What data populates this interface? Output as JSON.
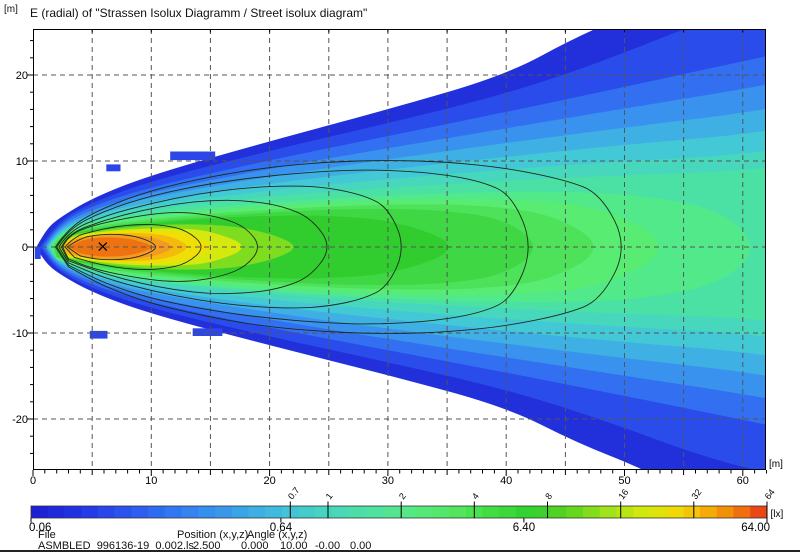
{
  "title": "E (radial) of \"Strassen Isolux Diagramm / Street isolux diagram\"",
  "axes": {
    "y_unit": "[m]",
    "x_unit": "[m]",
    "x_tick_labels": [
      "0",
      "10",
      "20",
      "30",
      "40",
      "50",
      "60"
    ],
    "x_tick_values": [
      0,
      10,
      20,
      30,
      40,
      50,
      60
    ],
    "y_tick_labels": [
      "20",
      "10",
      "0",
      "-10",
      "-20"
    ],
    "y_tick_values": [
      20,
      10,
      0,
      -10,
      -20
    ],
    "x_range_m": [
      0,
      62
    ],
    "y_range_m": [
      -25.9,
      25.3
    ],
    "grid_x_step_m": 5,
    "grid_y_step_m": 10
  },
  "colorbar": {
    "unit": "[lx]",
    "min": 0.06,
    "max": 64,
    "labels_below": [
      "0.06",
      "0.64",
      "6.40",
      "64.00"
    ],
    "values_below": [
      0.06,
      0.64,
      6.4,
      64
    ],
    "labels_above": [
      "0.7",
      "1",
      "2",
      "4",
      "8",
      "16",
      "32",
      "64"
    ],
    "levels_above": [
      0.7,
      1,
      2,
      4,
      8,
      16,
      32,
      64
    ],
    "palette_stops": [
      [
        0.0,
        "#1a1ed0"
      ],
      [
        0.07,
        "#2336e6"
      ],
      [
        0.14,
        "#2c5af0"
      ],
      [
        0.21,
        "#3380f2"
      ],
      [
        0.28,
        "#3aa2ea"
      ],
      [
        0.34,
        "#40bfdc"
      ],
      [
        0.4,
        "#46d5bf"
      ],
      [
        0.46,
        "#4ee0a1"
      ],
      [
        0.52,
        "#56e982"
      ],
      [
        0.575,
        "#52e75f"
      ],
      [
        0.63,
        "#40dc40"
      ],
      [
        0.68,
        "#2fd02b"
      ],
      [
        0.73,
        "#5ad41f"
      ],
      [
        0.78,
        "#9ce317"
      ],
      [
        0.83,
        "#cfe80e"
      ],
      [
        0.87,
        "#ecdf08"
      ],
      [
        0.9,
        "#f4c307"
      ],
      [
        0.93,
        "#f5a007"
      ],
      [
        0.96,
        "#f3790b"
      ],
      [
        1.0,
        "#e8321a"
      ]
    ]
  },
  "chart_data": {
    "type": "isolux_contour_map",
    "title": "E (radial) of \"Strassen Isolux Diagramm / Street isolux diagram\"",
    "units": {
      "xy": "m",
      "illuminance": "lx"
    },
    "scale_type": "logarithmic",
    "scale_range_lx": [
      0.06,
      64
    ],
    "contour_levels_lx": [
      0.7,
      1,
      2,
      4,
      8,
      16,
      32
    ],
    "source_marker_m": {
      "x": 5.9,
      "y": 0.05
    },
    "field_bands": [
      {
        "color": "#2130db",
        "open": true,
        "pts": [
          [
            0.3,
            0
          ],
          [
            1,
            1.8
          ],
          [
            2,
            3.2
          ],
          [
            5,
            5.7
          ],
          [
            10,
            8.4
          ],
          [
            20,
            12.3
          ],
          [
            30,
            16
          ],
          [
            40,
            20
          ],
          [
            46,
            24.5
          ],
          [
            52,
            28
          ],
          [
            58,
            33
          ]
        ]
      },
      {
        "color": "#2a4cea",
        "open": true,
        "pts": [
          [
            0.6,
            0
          ],
          [
            2,
            2.9
          ],
          [
            5,
            5.2
          ],
          [
            10,
            7.7
          ],
          [
            20,
            11.2
          ],
          [
            30,
            14.4
          ],
          [
            40,
            17.8
          ],
          [
            48,
            21.5
          ],
          [
            58,
            27
          ]
        ]
      },
      {
        "color": "#3270f1",
        "open": true,
        "pts": [
          [
            0.8,
            0
          ],
          [
            2,
            2.6
          ],
          [
            5,
            4.8
          ],
          [
            10,
            7.0
          ],
          [
            20,
            10.1
          ],
          [
            30,
            12.9
          ],
          [
            40,
            15.7
          ],
          [
            50,
            18.6
          ],
          [
            62,
            22.2
          ]
        ]
      },
      {
        "color": "#3992ee",
        "open": true,
        "pts": [
          [
            1.0,
            0
          ],
          [
            2,
            2.35
          ],
          [
            5,
            4.4
          ],
          [
            10,
            6.4
          ],
          [
            20,
            9.1
          ],
          [
            30,
            11.5
          ],
          [
            40,
            13.8
          ],
          [
            50,
            16.1
          ],
          [
            62,
            18.8
          ]
        ]
      },
      {
        "color": "#3eb0e4",
        "open": true,
        "pts": [
          [
            1.1,
            0
          ],
          [
            2,
            2.1
          ],
          [
            5,
            4.05
          ],
          [
            10,
            5.8
          ],
          [
            20,
            8.2
          ],
          [
            30,
            10.2
          ],
          [
            40,
            12.1
          ],
          [
            50,
            13.9
          ],
          [
            62,
            15.9
          ]
        ]
      },
      {
        "color": "#43c8d6",
        "open": true,
        "pts": [
          [
            1.2,
            0
          ],
          [
            2,
            1.9
          ],
          [
            5,
            3.7
          ],
          [
            10,
            5.3
          ],
          [
            20,
            7.4
          ],
          [
            30,
            9.0
          ],
          [
            40,
            10.5
          ],
          [
            50,
            11.9
          ],
          [
            62,
            13.3
          ]
        ]
      },
      {
        "color": "#47d7bd",
        "open": true,
        "pts": [
          [
            1.3,
            0
          ],
          [
            2,
            1.7
          ],
          [
            5,
            3.4
          ],
          [
            10,
            4.8
          ],
          [
            20,
            6.6
          ],
          [
            30,
            7.9
          ],
          [
            40,
            9.0
          ],
          [
            50,
            10.0
          ],
          [
            62,
            10.9
          ]
        ]
      },
      {
        "color": "#4ce1a4",
        "open": true,
        "pts": [
          [
            1.4,
            0
          ],
          [
            2,
            1.55
          ],
          [
            5,
            3.1
          ],
          [
            10,
            4.35
          ],
          [
            20,
            5.9
          ],
          [
            30,
            6.9
          ],
          [
            40,
            7.7
          ],
          [
            50,
            8.35
          ],
          [
            62,
            8.9
          ]
        ]
      },
      {
        "color": "#52e98b",
        "pts": [
          [
            1.5,
            0
          ],
          [
            2,
            1.45
          ],
          [
            5,
            2.85
          ],
          [
            10,
            3.95
          ],
          [
            20,
            5.2
          ],
          [
            30,
            6.0
          ],
          [
            40,
            6.45
          ],
          [
            50,
            6.3
          ],
          [
            58,
            4.5
          ],
          [
            61.5,
            0
          ]
        ]
      },
      {
        "color": "#58ec73",
        "pts": [
          [
            1.6,
            0
          ],
          [
            2,
            1.35
          ],
          [
            5,
            2.6
          ],
          [
            10,
            3.6
          ],
          [
            20,
            4.8
          ],
          [
            30,
            5.5
          ],
          [
            40,
            5.6
          ],
          [
            48,
            4.8
          ],
          [
            54.5,
            0
          ]
        ]
      },
      {
        "color": "#4ee25a",
        "pts": [
          [
            1.7,
            0
          ],
          [
            2,
            1.25
          ],
          [
            5,
            2.4
          ],
          [
            10,
            3.3
          ],
          [
            20,
            4.4
          ],
          [
            30,
            5.0
          ],
          [
            38,
            4.9
          ],
          [
            44,
            3.8
          ],
          [
            48.5,
            0
          ]
        ]
      },
      {
        "color": "#3fd844",
        "pts": [
          [
            1.8,
            0
          ],
          [
            2,
            1.15
          ],
          [
            5,
            2.2
          ],
          [
            10,
            3.05
          ],
          [
            20,
            4.05
          ],
          [
            28,
            4.5
          ],
          [
            35,
            4.3
          ],
          [
            40,
            3.2
          ],
          [
            43,
            0
          ]
        ]
      },
      {
        "color": "#31cd2f",
        "pts": [
          [
            1.9,
            0
          ],
          [
            3,
            1.5
          ],
          [
            5,
            2.0
          ],
          [
            10,
            2.8
          ],
          [
            18,
            3.6
          ],
          [
            25,
            3.7
          ],
          [
            31,
            3.0
          ],
          [
            36.5,
            0
          ]
        ]
      },
      {
        "color": "#7edd1f",
        "pts": [
          [
            2.1,
            0
          ],
          [
            3,
            1.35
          ],
          [
            5,
            1.85
          ],
          [
            9,
            2.45
          ],
          [
            13,
            2.7
          ],
          [
            17,
            2.45
          ],
          [
            20.5,
            1.4
          ],
          [
            22.5,
            0
          ]
        ]
      },
      {
        "color": "#d6e90e",
        "pts": [
          [
            2.3,
            0
          ],
          [
            3,
            1.2
          ],
          [
            5,
            1.65
          ],
          [
            8,
            2.1
          ],
          [
            12,
            2.2
          ],
          [
            15,
            1.9
          ],
          [
            18.5,
            0
          ]
        ]
      },
      {
        "color": "#efdf07",
        "pts": [
          [
            2.4,
            0
          ],
          [
            3,
            1.1
          ],
          [
            5,
            1.5
          ],
          [
            8,
            1.9
          ],
          [
            11,
            1.95
          ],
          [
            13.5,
            1.5
          ],
          [
            15.5,
            0
          ]
        ]
      },
      {
        "color": "#f5bb0a",
        "pts": [
          [
            2.5,
            0
          ],
          [
            3,
            0.95
          ],
          [
            5,
            1.35
          ],
          [
            7.5,
            1.65
          ],
          [
            10,
            1.6
          ],
          [
            12,
            1.1
          ],
          [
            13.3,
            0
          ]
        ]
      },
      {
        "color": "#f59a21",
        "pts": [
          [
            2.6,
            0
          ],
          [
            3.5,
            0.9
          ],
          [
            4.5,
            1.2
          ],
          [
            7,
            1.45
          ],
          [
            9.5,
            1.3
          ],
          [
            11.3,
            0.6
          ],
          [
            11.8,
            0
          ]
        ]
      },
      {
        "color": "#ef7210",
        "pts": [
          [
            3.0,
            0
          ],
          [
            4,
            0.75
          ],
          [
            5,
            1.0
          ],
          [
            6,
            1.15
          ],
          [
            8,
            1.05
          ],
          [
            9.6,
            0.45
          ],
          [
            10.2,
            0
          ]
        ]
      }
    ],
    "contours": [
      {
        "level": 0.7,
        "pts": [
          [
            1.9,
            0
          ],
          [
            3,
            2.3
          ],
          [
            6,
            4.6
          ],
          [
            10,
            6.6
          ],
          [
            15,
            8.2
          ],
          [
            20,
            9.3
          ],
          [
            25,
            9.9
          ],
          [
            30,
            10.1
          ],
          [
            35,
            9.9
          ],
          [
            40,
            9.2
          ],
          [
            45,
            7.8
          ],
          [
            48,
            6.2
          ],
          [
            50.3,
            0
          ]
        ]
      },
      {
        "level": 1,
        "pts": [
          [
            2.0,
            0
          ],
          [
            3,
            2.1
          ],
          [
            6,
            4.2
          ],
          [
            10,
            6.0
          ],
          [
            15,
            7.4
          ],
          [
            20,
            8.3
          ],
          [
            25,
            8.85
          ],
          [
            29,
            9.0
          ],
          [
            34,
            8.6
          ],
          [
            38,
            7.6
          ],
          [
            40.5,
            6.0
          ],
          [
            42.3,
            0
          ]
        ]
      },
      {
        "level": 2,
        "pts": [
          [
            2.2,
            0
          ],
          [
            3,
            1.85
          ],
          [
            6,
            3.6
          ],
          [
            10,
            5.1
          ],
          [
            14,
            6.2
          ],
          [
            18,
            6.9
          ],
          [
            22,
            7.15
          ],
          [
            25,
            6.9
          ],
          [
            28,
            6.0
          ],
          [
            30,
            4.6
          ],
          [
            31.5,
            0
          ]
        ]
      },
      {
        "level": 4,
        "pts": [
          [
            2.4,
            0
          ],
          [
            3,
            1.6
          ],
          [
            6,
            3.1
          ],
          [
            9,
            4.2
          ],
          [
            12,
            5.0
          ],
          [
            15,
            5.45
          ],
          [
            18,
            5.4
          ],
          [
            21,
            4.8
          ],
          [
            23.5,
            3.4
          ],
          [
            25.3,
            0
          ]
        ]
      },
      {
        "level": 8,
        "pts": [
          [
            2.5,
            0
          ],
          [
            3,
            1.4
          ],
          [
            5,
            2.5
          ],
          [
            8,
            3.4
          ],
          [
            11,
            4.0
          ],
          [
            13.5,
            4.0
          ],
          [
            16,
            3.4
          ],
          [
            18,
            2.3
          ],
          [
            19.3,
            0
          ]
        ]
      },
      {
        "level": 16,
        "pts": [
          [
            2.7,
            0
          ],
          [
            3.5,
            1.2
          ],
          [
            5,
            1.8
          ],
          [
            7,
            2.4
          ],
          [
            9,
            2.65
          ],
          [
            11,
            2.55
          ],
          [
            13,
            1.95
          ],
          [
            14.6,
            0
          ]
        ]
      },
      {
        "level": 32,
        "pts": [
          [
            2.9,
            0
          ],
          [
            4,
            1.05
          ],
          [
            5.5,
            1.45
          ],
          [
            7.5,
            1.5
          ],
          [
            9.3,
            1.05
          ],
          [
            10.7,
            0
          ]
        ]
      }
    ],
    "specks_m": [
      [
        0.15,
        -0.7,
        0.5,
        1.4
      ],
      [
        11.6,
        10.6,
        3.8,
        1.0
      ],
      [
        6.2,
        9.2,
        1.2,
        0.8
      ],
      [
        4.8,
        -10.2,
        1.5,
        0.9
      ],
      [
        13.5,
        -9.9,
        2.5,
        0.9
      ]
    ],
    "speck_color": "#2d46e8"
  },
  "footer": {
    "file_label": "File",
    "file_value": "ASMBLED_996136-19_0.002.ls",
    "position_label": "Position (x,y,z)",
    "position_values": [
      "2.500",
      "0.000",
      "10.00"
    ],
    "angle_label": "Angle (x,y,z)",
    "angle_values": [
      "-0.00",
      "0.00"
    ]
  }
}
